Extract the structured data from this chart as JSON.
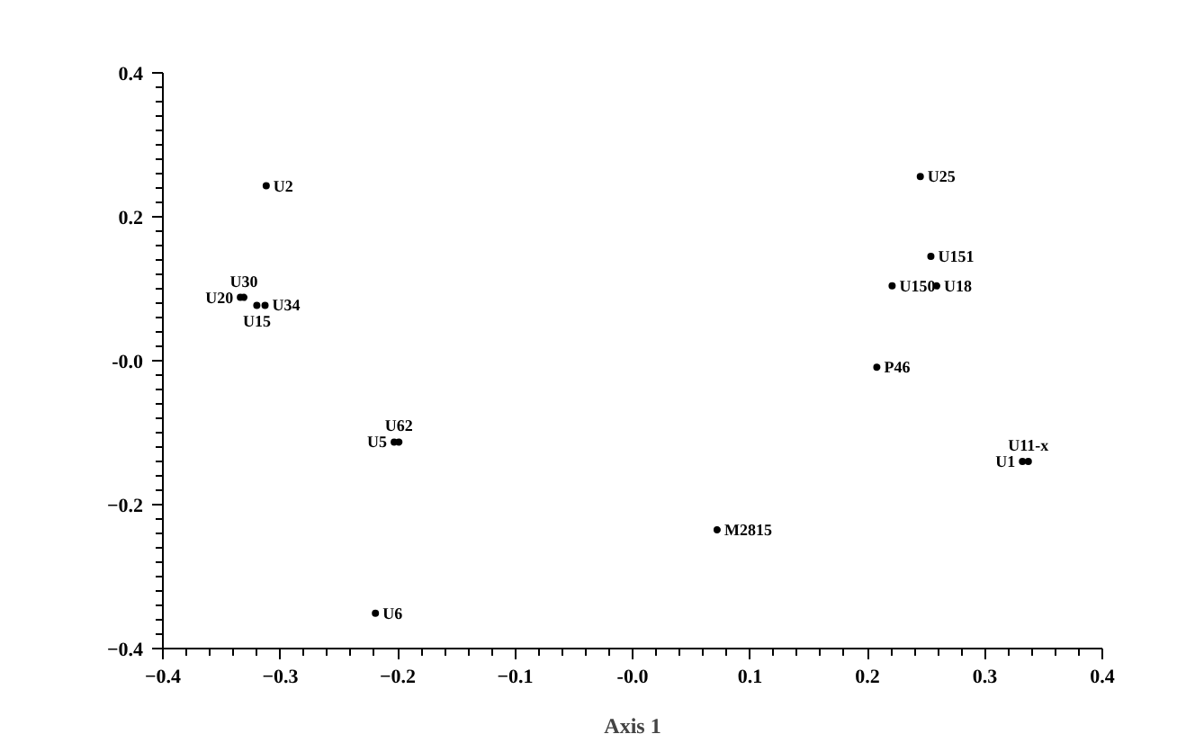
{
  "chart_data": {
    "type": "scatter",
    "xlabel": "Axis 1",
    "marker": "circle",
    "grid": false,
    "legend": false,
    "xlim": [
      -0.4,
      0.4
    ],
    "ylim": [
      -0.4,
      0.4
    ],
    "xticks": [
      -0.4,
      -0.3,
      -0.2,
      -0.1,
      {
        "value": 0,
        "label": "-0.0"
      },
      0.1,
      0.2,
      0.3,
      0.4
    ],
    "yticks": [
      -0.4,
      -0.2,
      {
        "value": 0,
        "label": "-0.0"
      },
      0.2,
      0.4
    ],
    "series": [
      {
        "name": "U2",
        "color": "#000000",
        "x": [
          -0.312
        ],
        "values": [
          0.243
        ]
      },
      {
        "name": "U20",
        "color": "#000000",
        "x": [
          -0.334
        ],
        "values": [
          0.088
        ]
      },
      {
        "name": "U30",
        "color": "#000000",
        "x": [
          -0.331
        ],
        "values": [
          0.088
        ]
      },
      {
        "name": "U15",
        "color": "#000000",
        "x": [
          -0.32
        ],
        "values": [
          0.077
        ]
      },
      {
        "name": "U34",
        "color": "#000000",
        "x": [
          -0.313
        ],
        "values": [
          0.077
        ]
      },
      {
        "name": "U5",
        "color": "#000000",
        "x": [
          -0.203
        ],
        "values": [
          -0.113
        ]
      },
      {
        "name": "U62",
        "color": "#000000",
        "x": [
          -0.199
        ],
        "values": [
          -0.113
        ]
      },
      {
        "name": "U6",
        "color": "#000000",
        "x": [
          -0.219
        ],
        "values": [
          -0.351
        ]
      },
      {
        "name": "U25",
        "color": "#000000",
        "x": [
          0.245
        ],
        "values": [
          0.256
        ]
      },
      {
        "name": "U151",
        "color": "#000000",
        "x": [
          0.254
        ],
        "values": [
          0.145
        ]
      },
      {
        "name": "U150",
        "color": "#000000",
        "x": [
          0.221
        ],
        "values": [
          0.104
        ]
      },
      {
        "name": "U18",
        "color": "#000000",
        "x": [
          0.259
        ],
        "values": [
          0.104
        ]
      },
      {
        "name": "P46",
        "color": "#000000",
        "x": [
          0.208
        ],
        "values": [
          -0.009
        ]
      },
      {
        "name": "U1",
        "color": "#000000",
        "x": [
          0.332
        ],
        "values": [
          -0.14
        ]
      },
      {
        "name": "U11-x",
        "color": "#000000",
        "x": [
          0.337
        ],
        "values": [
          -0.14
        ]
      },
      {
        "name": "M2815",
        "color": "#000000",
        "x": [
          0.072
        ],
        "values": [
          -0.235
        ]
      }
    ]
  }
}
